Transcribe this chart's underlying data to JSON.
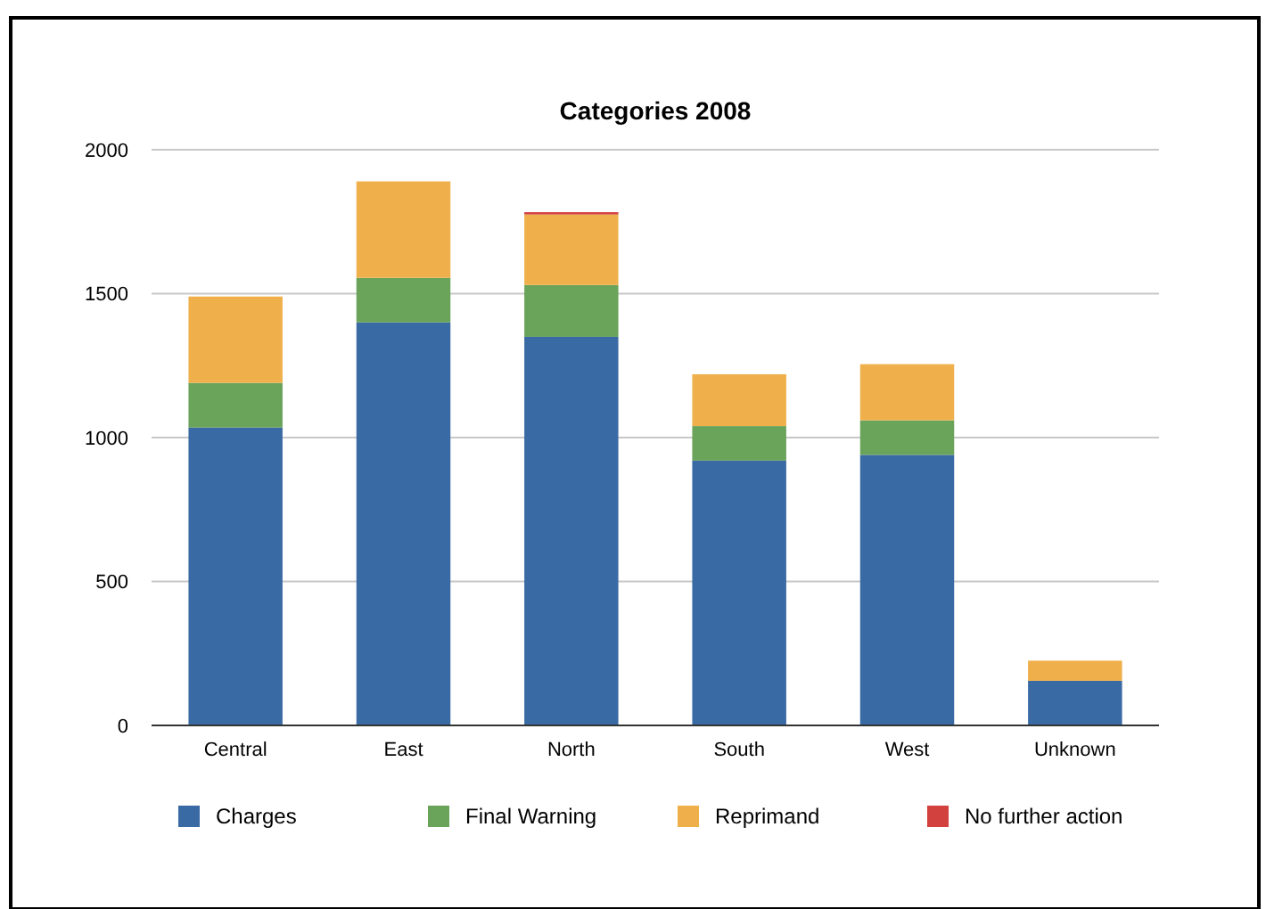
{
  "chart_data": {
    "type": "bar",
    "title": "Categories 2008",
    "stacked": true,
    "categories": [
      "Central",
      "East",
      "North",
      "South",
      "West",
      "Unknown"
    ],
    "series": [
      {
        "name": "Charges",
        "color": "#3a6aa3",
        "values": [
          1035,
          1400,
          1350,
          920,
          940,
          155
        ]
      },
      {
        "name": "Final Warning",
        "color": "#6aa35a",
        "values": [
          155,
          155,
          180,
          120,
          120,
          0
        ]
      },
      {
        "name": "Reprimand",
        "color": "#efb04c",
        "values": [
          300,
          335,
          245,
          180,
          195,
          70
        ]
      },
      {
        "name": "No further action",
        "color": "#d2413d",
        "values": [
          0,
          0,
          8,
          0,
          0,
          0
        ]
      }
    ],
    "ylim": [
      0,
      2000
    ],
    "yticks": [
      0,
      500,
      1000,
      1500,
      2000
    ],
    "grid": "y",
    "legend": "bottom"
  }
}
